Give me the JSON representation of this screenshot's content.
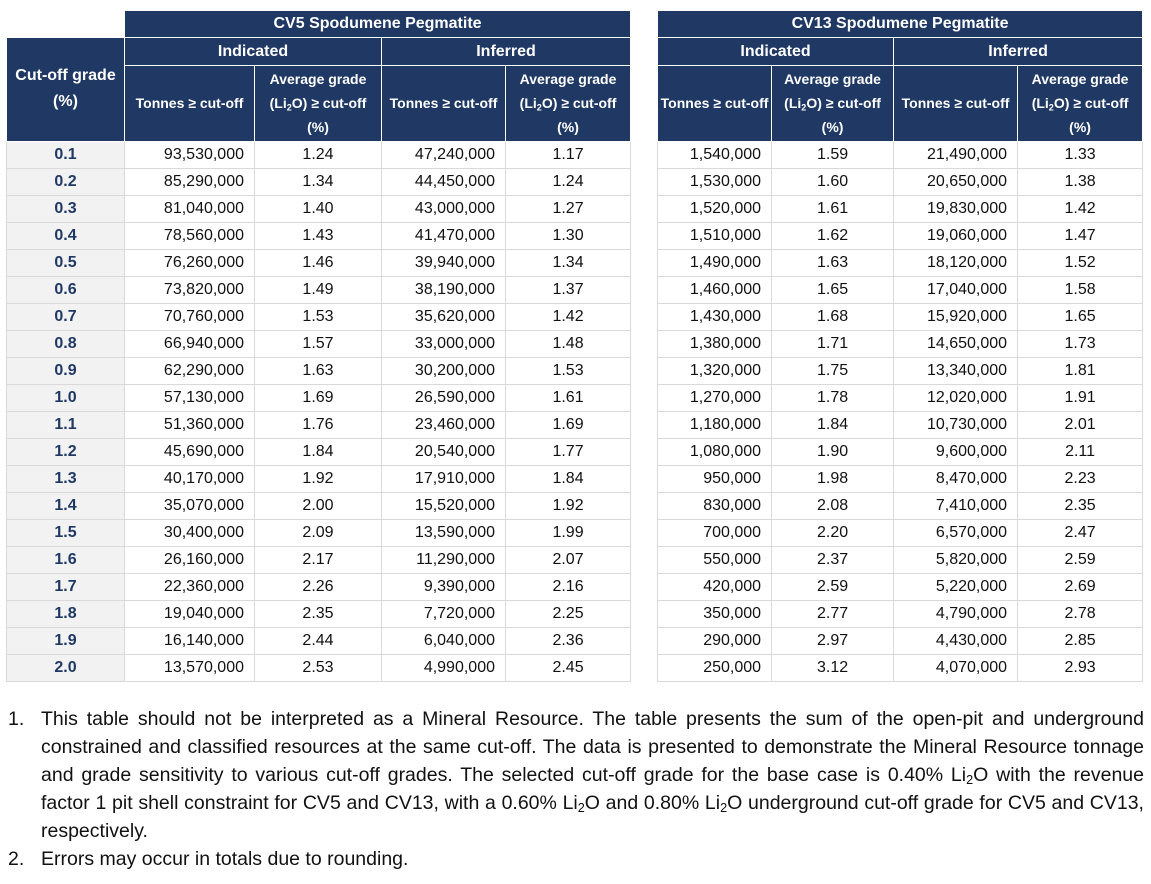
{
  "table": {
    "groups": [
      "CV5 Spodumene Pegmatite",
      "CV13 Spodumene Pegmatite"
    ],
    "subgroups": [
      "Indicated",
      "Inferred",
      "Indicated",
      "Inferred"
    ],
    "first_header": "Cut-off grade (%)",
    "columns": [
      {
        "parts": [
          "Tonnes ≥ cut-off"
        ]
      },
      {
        "parts": [
          "Average grade (Li",
          "2",
          "O) ≥ cut-off (%)"
        ]
      },
      {
        "parts": [
          "Tonnes ≥ cut-off"
        ]
      },
      {
        "parts": [
          "Average grade (Li",
          "2",
          "O) ≥ cut-off (%)"
        ]
      },
      {
        "parts": [
          "Tonnes ≥ cut-off"
        ]
      },
      {
        "parts": [
          "Average grade (Li",
          "2",
          "O) ≥ cut-off (%)"
        ]
      },
      {
        "parts": [
          "Tonnes ≥ cut-off"
        ]
      },
      {
        "parts": [
          "Average grade (Li",
          "2",
          "O) ≥ cut-off (%)"
        ]
      }
    ],
    "rows": [
      [
        "0.1",
        "93,530,000",
        "1.24",
        "47,240,000",
        "1.17",
        "1,540,000",
        "1.59",
        "21,490,000",
        "1.33"
      ],
      [
        "0.2",
        "85,290,000",
        "1.34",
        "44,450,000",
        "1.24",
        "1,530,000",
        "1.60",
        "20,650,000",
        "1.38"
      ],
      [
        "0.3",
        "81,040,000",
        "1.40",
        "43,000,000",
        "1.27",
        "1,520,000",
        "1.61",
        "19,830,000",
        "1.42"
      ],
      [
        "0.4",
        "78,560,000",
        "1.43",
        "41,470,000",
        "1.30",
        "1,510,000",
        "1.62",
        "19,060,000",
        "1.47"
      ],
      [
        "0.5",
        "76,260,000",
        "1.46",
        "39,940,000",
        "1.34",
        "1,490,000",
        "1.63",
        "18,120,000",
        "1.52"
      ],
      [
        "0.6",
        "73,820,000",
        "1.49",
        "38,190,000",
        "1.37",
        "1,460,000",
        "1.65",
        "17,040,000",
        "1.58"
      ],
      [
        "0.7",
        "70,760,000",
        "1.53",
        "35,620,000",
        "1.42",
        "1,430,000",
        "1.68",
        "15,920,000",
        "1.65"
      ],
      [
        "0.8",
        "66,940,000",
        "1.57",
        "33,000,000",
        "1.48",
        "1,380,000",
        "1.71",
        "14,650,000",
        "1.73"
      ],
      [
        "0.9",
        "62,290,000",
        "1.63",
        "30,200,000",
        "1.53",
        "1,320,000",
        "1.75",
        "13,340,000",
        "1.81"
      ],
      [
        "1.0",
        "57,130,000",
        "1.69",
        "26,590,000",
        "1.61",
        "1,270,000",
        "1.78",
        "12,020,000",
        "1.91"
      ],
      [
        "1.1",
        "51,360,000",
        "1.76",
        "23,460,000",
        "1.69",
        "1,180,000",
        "1.84",
        "10,730,000",
        "2.01"
      ],
      [
        "1.2",
        "45,690,000",
        "1.84",
        "20,540,000",
        "1.77",
        "1,080,000",
        "1.90",
        "9,600,000",
        "2.11"
      ],
      [
        "1.3",
        "40,170,000",
        "1.92",
        "17,910,000",
        "1.84",
        "950,000",
        "1.98",
        "8,470,000",
        "2.23"
      ],
      [
        "1.4",
        "35,070,000",
        "2.00",
        "15,520,000",
        "1.92",
        "830,000",
        "2.08",
        "7,410,000",
        "2.35"
      ],
      [
        "1.5",
        "30,400,000",
        "2.09",
        "13,590,000",
        "1.99",
        "700,000",
        "2.20",
        "6,570,000",
        "2.47"
      ],
      [
        "1.6",
        "26,160,000",
        "2.17",
        "11,290,000",
        "2.07",
        "550,000",
        "2.37",
        "5,820,000",
        "2.59"
      ],
      [
        "1.7",
        "22,360,000",
        "2.26",
        "9,390,000",
        "2.16",
        "420,000",
        "2.59",
        "5,220,000",
        "2.69"
      ],
      [
        "1.8",
        "19,040,000",
        "2.35",
        "7,720,000",
        "2.25",
        "350,000",
        "2.77",
        "4,790,000",
        "2.78"
      ],
      [
        "1.9",
        "16,140,000",
        "2.44",
        "6,040,000",
        "2.36",
        "290,000",
        "2.97",
        "4,430,000",
        "2.85"
      ],
      [
        "2.0",
        "13,570,000",
        "2.53",
        "4,990,000",
        "2.45",
        "250,000",
        "3.12",
        "4,070,000",
        "2.93"
      ]
    ]
  },
  "notes": [
    {
      "number": "1.",
      "parts": [
        "This table should not be interpreted as a Mineral Resource. The table presents the sum of the open-pit and underground constrained and classified resources at the same cut-off. The data is presented to demonstrate the Mineral Resource tonnage and grade sensitivity to various cut-off grades. The selected cut-off grade for the base case is 0.40% Li",
        "2",
        "O with the revenue factor 1 pit shell constraint for CV5 and CV13, with a 0.60% Li",
        "2",
        "O and 0.80% Li",
        "2",
        "O underground cut-off grade for CV5 and CV13, respectively."
      ]
    },
    {
      "number": "2.",
      "parts": [
        "Errors may occur in totals due to rounding."
      ]
    }
  ]
}
